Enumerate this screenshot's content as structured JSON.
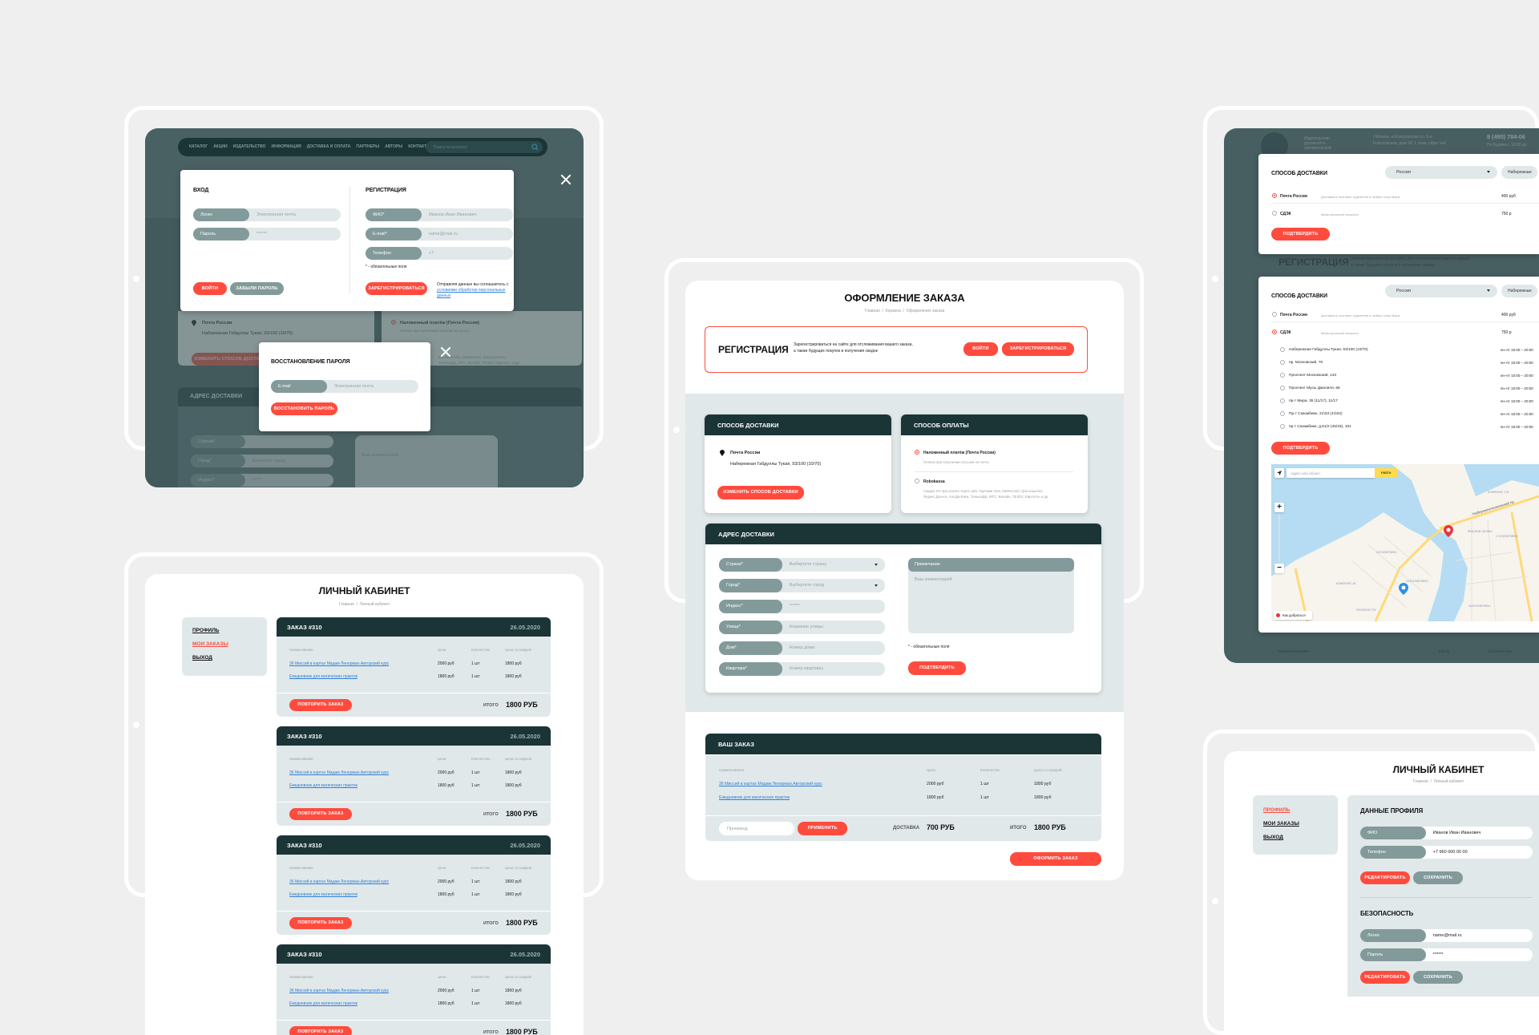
{
  "colors": {
    "accent": "#ff4b3e",
    "dark": "#1b3537",
    "label_grey": "#839a9b",
    "field_bg": "#e1e8e9",
    "link": "#2f7fd6",
    "overlay": "#485f61",
    "page_bg": "#efefef"
  },
  "common": {
    "table_headers": [
      "Наименование",
      "Цена",
      "Количество",
      "Цена со скидкой"
    ],
    "items": [
      {
        "name": "36 Миссий в картах Мадам Ленорман.Авторский курс",
        "price": "2000 руб",
        "qty": "1 шт",
        "discount": "1800 руб"
      },
      {
        "name": "Ежедневник для магических практик",
        "price": "1800 руб",
        "qty": "1 шт",
        "discount": "1800 руб"
      }
    ],
    "required_note": "* - обязательные поля"
  },
  "auth_screen": {
    "nav": [
      "КАТАЛОГ",
      "АКЦИИ",
      "ИЗДАТЕЛЬСТВО",
      "ИНФОРМАЦИЯ",
      "ДОСТАВКА И ОПЛАТА",
      "ПАРТНЕРЫ",
      "АВТОРЫ",
      "КОНТАКТЫ"
    ],
    "search_placeholder": "Поиск по каталогу",
    "background": {
      "delivery_name": "Почта России",
      "delivery_addr": "Набережная Габдуллы Тукая, 93/100 (10/70)",
      "change_btn": "ИЗМЕНИТЬ СПОСОБ ДОСТАВКИ",
      "pay_option": "Наложенный платёж (Почта России)",
      "pay_sub": "Оплата при получении посылки на почте.",
      "pay_text_1": "Картами Visa, Mastercard, Qiwi кошелек,",
      "pay_text_2": "Тинькофф, МТС, Билайн, ТЕЛЕ2, Евросеть и др.",
      "address_title": "АДРЕС ДОСТАВКИ",
      "fields": [
        {
          "label": "Страна*",
          "placeholder": ""
        },
        {
          "label": "Город*",
          "placeholder": "Выберите город"
        },
        {
          "label": "Индекс*",
          "placeholder": "******"
        },
        {
          "label": "Улица*",
          "placeholder": "Название улицы"
        }
      ],
      "comment": "Ваш комментарий"
    },
    "login": {
      "title": "ВХОД",
      "fields": [
        {
          "label": "Логин",
          "placeholder": "Электронная почта"
        },
        {
          "label": "Пароль",
          "placeholder": "******"
        }
      ],
      "login_btn": "ВОЙТИ",
      "forgot_btn": "ЗАБЫЛИ ПАРОЛЬ"
    },
    "register": {
      "title": "РЕГИСТРАЦИЯ",
      "fields": [
        {
          "label": "ФИО*",
          "placeholder": "Иванов Иван Иванович"
        },
        {
          "label": "E-mail*",
          "placeholder": "name@mail.ru"
        },
        {
          "label": "Телефон",
          "placeholder": "+7"
        }
      ],
      "btn": "ЗАРЕГИСТРИРОВАТЬСЯ",
      "agreement": "Отправляя данные вы соглашаетесь с",
      "agreement_link": "условиями обработки персональных данных"
    },
    "recovery": {
      "title": "ВОССТАНОВЛЕНИЕ ПАРОЛЯ",
      "field": {
        "label": "E-mail",
        "placeholder": "Электронная почта"
      },
      "btn": "ВОССТАНОВИТЬ ПАРОЛЬ"
    }
  },
  "orders_screen": {
    "title": "ЛИЧНЫЙ КАБИНЕТ",
    "breadcrumb": [
      "Главная",
      "/",
      "Личный кабинет"
    ],
    "menu": [
      {
        "label": "ПРОФИЛЬ",
        "active": false
      },
      {
        "label": "МОИ ЗАКАЗЫ",
        "active": true
      },
      {
        "label": "ВЫХОД",
        "active": false
      }
    ],
    "orders": [
      {
        "title": "ЗАКАЗ #310",
        "date": "26.05.2020",
        "repeat_btn": "ПОВТОРИТЬ ЗАКАЗ",
        "total_label": "ИТОГО",
        "total": "1800 РУБ"
      },
      {
        "title": "ЗАКАЗ #310",
        "date": "26.05.2020",
        "repeat_btn": "ПОВТОРИТЬ ЗАКАЗ",
        "total_label": "ИТОГО",
        "total": "1800 РУБ"
      },
      {
        "title": "ЗАКАЗ #310",
        "date": "26.05.2020",
        "repeat_btn": "ПОВТОРИТЬ ЗАКАЗ",
        "total_label": "ИТОГО",
        "total": "1800 РУБ"
      },
      {
        "title": "ЗАКАЗ #310",
        "date": "26.05.2020",
        "repeat_btn": "ПОВТОРИТЬ ЗАКАЗ",
        "total_label": "ИТОГО",
        "total": "1800 РУБ"
      }
    ]
  },
  "checkout": {
    "title": "ОФОРМЛЕНИЕ ЗАКАЗА",
    "breadcrumb": [
      "Главная",
      "/",
      "Корзина",
      "/",
      "Оформление заказа"
    ],
    "registration": {
      "title": "РЕГИСТРАЦИЯ",
      "text_1": "Зарегистрироваться на сайте для отслеживания вашего заказа,",
      "text_2": "а также будущих покупок и получения скидок",
      "login_btn": "ВОЙТИ",
      "register_btn": "ЗАРЕГИСТРИРОВАТЬСЯ"
    },
    "delivery": {
      "title": "СПОСОБ ДОСТАВКИ",
      "name": "Почта России",
      "address": "Набережная Габдуллы Тукая, 93/100 (10/70)",
      "change_btn": "ИЗМЕНИТЬ СПОСОБ ДОСТАВКИ"
    },
    "payment": {
      "title": "СПОСОБ ОПЛАТЫ",
      "options": [
        {
          "label": "Наложенный платёж (Почта России)",
          "desc_1": "Оплата при получении посылки на почте.",
          "desc_2": "",
          "selected": true
        },
        {
          "label": "Robokassa",
          "desc_1": "Скидка 5% при оплате через сайт.  Картами Visa, Mastercard, Qiwi кошелек,",
          "desc_2": "Яндекс.Деньги, Альфа-Банк, Тинькофф, МТС, Билайн, ТЕЛЕ2, Евросеть и др.",
          "selected": false
        }
      ]
    },
    "address": {
      "title": "АДРЕС ДОСТАВКИ",
      "fields": [
        {
          "label": "Страна*",
          "placeholder": "Выбертите страну",
          "select": true
        },
        {
          "label": "Город*",
          "placeholder": "Выбертите город",
          "select": true
        },
        {
          "label": "Индекс*",
          "placeholder": "******"
        },
        {
          "label": "Улица*",
          "placeholder": "Название улицы"
        },
        {
          "label": "Дом*",
          "placeholder": "Номер дома"
        },
        {
          "label": "Квартира*",
          "placeholder": "Номер квартиры"
        }
      ],
      "note_label": "Примечание",
      "note_placeholder": "Ваш комментарий",
      "confirm_btn": "ПОДТВЕРДИТЬ"
    },
    "order": {
      "title": "ВАШ ЗАКАЗ",
      "promo_placeholder": "Промокод",
      "apply_btn": "ПРИМЕНИТЬ",
      "delivery_label": "ДОСТАВКА",
      "delivery_price": "700 РУБ",
      "total_label": "ИТОГО",
      "total": "1800 РУБ"
    },
    "submit_btn": "ОФОРМИТЬ ЗАКАЗ"
  },
  "delivery_screen": {
    "header": {
      "brand_text": "Издательство духовной и эзотерической",
      "address_1": "г.Москва, м.Кожуховская ул. 6-я",
      "address_2": "Кожуховская, дом 24, 1 этаж, офис №4",
      "phone": "8 (495) 784-06",
      "hours": "По будням с 10:00 до"
    },
    "bg_registration_title": "РЕГИСТРАЦИЯ",
    "bg_registration_text_1": "Зарегистрироваться на сайте для отслеживания вашего заказа,",
    "bg_registration_text_2": "а также будущих покупок и получения скидок",
    "bg_table": [
      "Наименование",
      "Цена",
      "Количество"
    ],
    "modal_a": {
      "title": "СПОСОБ ДОСТАВКИ",
      "country": "Россия",
      "city": "Набережные",
      "options": [
        {
          "name": "Почта России",
          "desc": "Доставка в почтовое отделение в любую точку Мира.",
          "price": "400 руб",
          "selected": true
        },
        {
          "name": "СДЭК",
          "desc": "Магистральный экспресс",
          "price": "750 р",
          "selected": false
        }
      ],
      "confirm_btn": "ПОДТВЕРДИТЬ"
    },
    "modal_b": {
      "title": "СПОСОБ ДОСТАВКИ",
      "country": "Россия",
      "city": "Набережные",
      "options": [
        {
          "name": "Почта России",
          "desc": "Доставка в почтовое отделение в любую точку Мира.",
          "price": "400 руб",
          "selected": false
        },
        {
          "name": "СДЭК",
          "desc": "Магистральный экспресс",
          "price": "750 р",
          "selected": true
        }
      ],
      "points": [
        {
          "address": "Набережная Габдуллы Тукая, 93/100 (10/70)",
          "hours": "пн–пт 10:00 – 20:00"
        },
        {
          "address": "пр. Московский, 70",
          "hours": "пн–пт 10:00 – 20:00"
        },
        {
          "address": "Проспект Московский, 143",
          "hours": "пн–пт 10:00 – 20:00"
        },
        {
          "address": "Проспект Мусы Джалиля, 66",
          "hours": "пн–пт 10:00 – 20:00"
        },
        {
          "address": "пр-т Мира, 35 (11/17), 11/17",
          "hours": "пн–пт 10:00 – 20:00"
        },
        {
          "address": "Пр-т Сююмбике, 21\\33 (41\\04)",
          "hours": "пн–пт 10:00 – 20:00"
        },
        {
          "address": "пр-т Сююмбике, д.61/2 (45/16), 101",
          "hours": "пн–пт 10:00 – 20:00"
        }
      ],
      "confirm_btn": "ПОДТВЕРДИТЬ",
      "map": {
        "search_placeholder": "Адрес или объект",
        "search_btn": "Найти",
        "route_btn": "Как добраться",
        "labels": [
          "Набережночелнинский пр",
          "КОМПЛЕКС 17А",
          "КРАСНЫЕ ЧЕЛНЫ",
          "9-Й КОМПЛЕКС",
          "10-Й КОМПЛЕКС",
          "КОМПЛЕКС 3А",
          "ПОСЕЛОК ГЭС",
          "17-Й КОМПЛЕКС",
          "26-Й КОМПЛЕКС"
        ]
      }
    }
  },
  "profile_screen": {
    "title": "ЛИЧНЫЙ КАБИНЕТ",
    "breadcrumb": [
      "Главная",
      "/",
      "Личный кабинет"
    ],
    "menu": [
      {
        "label": "ПРОФИЛЬ",
        "active": true
      },
      {
        "label": "МОИ ЗАКАЗЫ",
        "active": false
      },
      {
        "label": "ВЫХОД",
        "active": false
      }
    ],
    "profile": {
      "title": "ДАННЫЕ ПРОФИЛЯ",
      "fields": [
        {
          "label": "ФИО",
          "placeholder": "Иванов Иван Иванович"
        },
        {
          "label": "Телефон",
          "placeholder": "+7 960 000 00 00"
        }
      ],
      "edit_btn": "РЕДАКТИРОВАТЬ",
      "save_btn": "СОХРАНИТЬ"
    },
    "security": {
      "title": "БЕЗОПАСНОСТЬ",
      "fields": [
        {
          "label": "Логин",
          "placeholder": "name@mail.ru"
        },
        {
          "label": "Пароль",
          "placeholder": "******"
        }
      ],
      "edit_btn": "РЕДАКТИРОВАТЬ",
      "save_btn": "СОХРАНИТЬ"
    }
  }
}
